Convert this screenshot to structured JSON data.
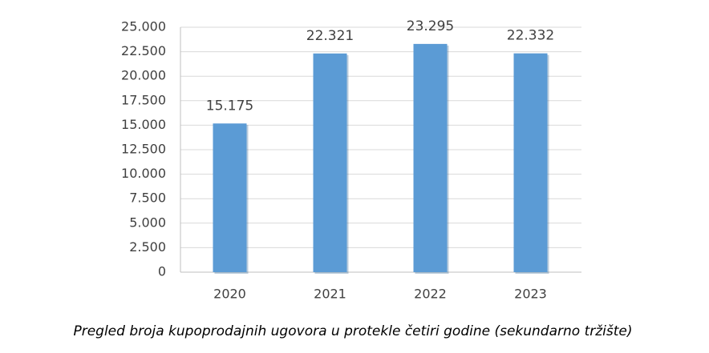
{
  "chart_data": {
    "type": "bar",
    "caption": "Pregled broja kupoprodajnih ugovora u protekle četiri godine (sekundarno tržište)",
    "categories": [
      "2020",
      "2021",
      "2022",
      "2023"
    ],
    "values": [
      15175,
      22321,
      23295,
      22332
    ],
    "value_labels": [
      "15.175",
      "22.321",
      "23.295",
      "22.332"
    ],
    "color": "#5b9bd5",
    "ylim": [
      0,
      25000
    ],
    "yticks": [
      0,
      {
        "value": 2500,
        "label": "2.500"
      },
      {
        "value": 5000,
        "label": "5.000"
      },
      {
        "value": 7500,
        "label": "7.500"
      },
      {
        "value": 10000,
        "label": "10.000"
      },
      {
        "value": 12500,
        "label": "12.500"
      },
      {
        "value": 15000,
        "label": "15.000"
      },
      {
        "value": 17500,
        "label": "17.500"
      },
      {
        "value": 20000,
        "label": "20.000"
      },
      {
        "value": 22500,
        "label": "22.500"
      },
      {
        "value": 25000,
        "label": "25.000"
      }
    ],
    "grid": true
  }
}
